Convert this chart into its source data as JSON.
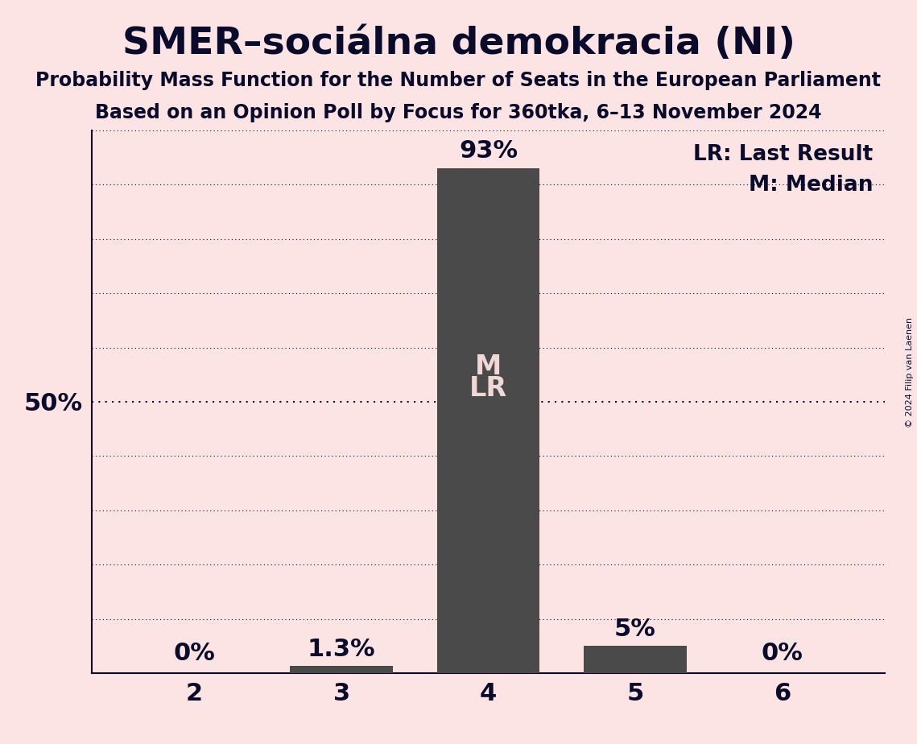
{
  "title": "SMER–sociálna demokracia (NI)",
  "subtitle1": "Probability Mass Function for the Number of Seats in the European Parliament",
  "subtitle2": "Based on an Opinion Poll by Focus for 360tka, 6–13 November 2024",
  "copyright": "© 2024 Filip van Laenen",
  "seats": [
    2,
    3,
    4,
    5,
    6
  ],
  "probabilities": [
    0.0,
    1.3,
    93.0,
    5.0,
    0.0
  ],
  "bar_labels": [
    "0%",
    "1.3%",
    "93%",
    "5%",
    "0%"
  ],
  "label_above": [
    true,
    true,
    true,
    true,
    true
  ],
  "median_seat": 4,
  "last_result_seat": 4,
  "bar_color": "#4a4a4a",
  "background_color": "#fce4e4",
  "text_color": "#0a0a2a",
  "bar_label_color_outside": "#0a0a2a",
  "bar_label_color_inside": "#f0d8d8",
  "legend_lr": "LR: Last Result",
  "legend_m": "M: Median",
  "ylabel_50": "50%",
  "ylim": [
    0,
    100
  ],
  "yticks": [
    0,
    10,
    20,
    30,
    40,
    50,
    60,
    70,
    80,
    90,
    100
  ],
  "grid_color": "#0a0a2a",
  "label_fontsize": 22,
  "tick_fontsize": 22,
  "title_fontsize": 34,
  "subtitle_fontsize": 17,
  "legend_fontsize": 19,
  "ml_fontsize": 24
}
